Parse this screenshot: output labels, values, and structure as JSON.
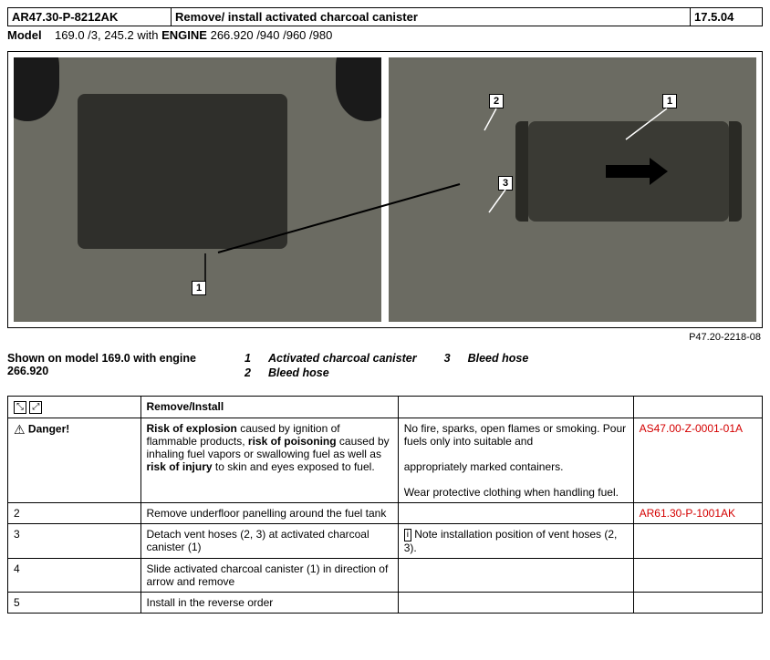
{
  "header": {
    "code": "AR47.30-P-8212AK",
    "title": "Remove/ install activated charcoal canister",
    "date": "17.5.04"
  },
  "model_line": {
    "label": "Model",
    "models": "169.0 /3, 245.2 with",
    "engine_word": "ENGINE",
    "engines": "266.920 /940 /960 /980"
  },
  "diagram": {
    "ref": "P47.20-2218-08",
    "callouts": {
      "p1_1": "1",
      "p2_1": "1",
      "p2_2": "2",
      "p2_3": "3"
    }
  },
  "legend": {
    "shown_on_l1": "Shown on model 169.0 with engine",
    "shown_on_l2": "266.920",
    "items": [
      {
        "n": "1",
        "t": "Activated charcoal canister"
      },
      {
        "n": "2",
        "t": "Bleed hose"
      },
      {
        "n": "3",
        "t": "Bleed hose"
      }
    ]
  },
  "proc": {
    "header": "Remove/Install",
    "rows": [
      {
        "c1_icon": "⚠",
        "c1": "Danger!",
        "c2_html": "Risk of explosion|caused by ignition of flammable products,|risk of poisoning|caused by inhaling fuel vapors or swallowing fuel as well as|risk of injury|to skin and eyes exposed to fuel.",
        "c3": "No fire, sparks, open flames or smoking. Pour fuels only into suitable and\n\nappropriately marked containers.\n\nWear protective clothing when handling fuel.",
        "c4": "AS47.00-Z-0001-01A",
        "c4_red": true
      },
      {
        "c1": "2",
        "c2": "Remove underfloor panelling around the fuel tank",
        "c3": "",
        "c4": "AR61.30-P-1001AK",
        "c4_red": true
      },
      {
        "c1": "3",
        "c2": "Detach vent hoses (2, 3) at activated charcoal canister (1)",
        "c3_icon": "i",
        "c3": "Note installation position of vent hoses (2, 3).",
        "c4": ""
      },
      {
        "c1": "4",
        "c2": "Slide activated charcoal canister (1) in direction of arrow and remove",
        "c3": "",
        "c4": ""
      },
      {
        "c1": "5",
        "c2": "Install in the reverse order",
        "c3": "",
        "c4": ""
      }
    ]
  }
}
